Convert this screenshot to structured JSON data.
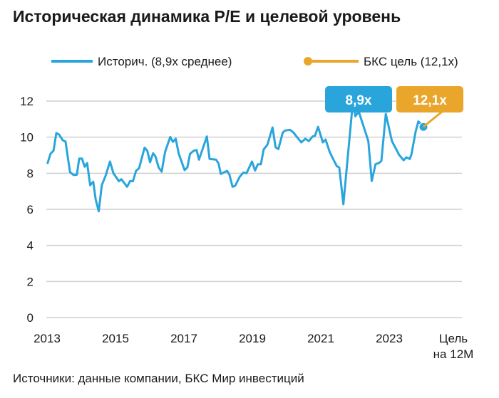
{
  "chart_data": {
    "type": "line",
    "title": "Историческая динамика P/E и целевой уровень",
    "source": "Источники: данные компании, БКС Мир инвестиций",
    "xlabel": "",
    "ylabel": "",
    "ylim": [
      0,
      12
    ],
    "yticks": [
      "0",
      "2",
      "4",
      "6",
      "8",
      "10",
      "12"
    ],
    "ytick_values": [
      0,
      2,
      4,
      6,
      8,
      10,
      12
    ],
    "xticks": [
      {
        "value": 2013,
        "label": "2013"
      },
      {
        "value": 2015,
        "label": "2015"
      },
      {
        "value": 2017,
        "label": "2017"
      },
      {
        "value": 2019,
        "label": "2019"
      },
      {
        "value": 2021,
        "label": "2021"
      },
      {
        "value": 2023,
        "label": "2023"
      }
    ],
    "target_tick": {
      "value": 2024.9,
      "label_line1": "Цель",
      "label_line2": "на 12М"
    },
    "grid": true,
    "legend_position": "top",
    "legend": [
      {
        "label": "Историч. (8,9x среднее)",
        "color": "#29a5dc"
      },
      {
        "label": "БКС цель (12,1x)",
        "color": "#e9a62b"
      }
    ],
    "annotations": [
      {
        "label": "8,9x",
        "color": "#29a5dc"
      },
      {
        "label": "12,1x",
        "color": "#e9a62b"
      }
    ],
    "series": [
      {
        "name": "Историч. (8,9x среднее)",
        "color": "#29a5dc",
        "x": [
          2013.01,
          2013.1,
          2013.19,
          2013.27,
          2013.35,
          2013.46,
          2013.54,
          2013.67,
          2013.78,
          2013.87,
          2013.94,
          2014.02,
          2014.1,
          2014.17,
          2014.26,
          2014.35,
          2014.42,
          2014.51,
          2014.6,
          2014.71,
          2014.84,
          2014.94,
          2015.1,
          2015.17,
          2015.34,
          2015.43,
          2015.51,
          2015.6,
          2015.69,
          2015.85,
          2015.93,
          2016.01,
          2016.1,
          2016.17,
          2016.26,
          2016.35,
          2016.45,
          2016.6,
          2016.68,
          2016.76,
          2016.85,
          2017.02,
          2017.1,
          2017.18,
          2017.29,
          2017.37,
          2017.44,
          2017.67,
          2017.75,
          2017.94,
          2018.01,
          2018.08,
          2018.26,
          2018.33,
          2018.42,
          2018.5,
          2018.63,
          2018.74,
          2018.83,
          2018.99,
          2019.08,
          2019.16,
          2019.25,
          2019.33,
          2019.44,
          2019.59,
          2019.68,
          2019.76,
          2019.89,
          2019.96,
          2020.1,
          2020.2,
          2020.43,
          2020.55,
          2020.65,
          2020.76,
          2020.83,
          2020.92,
          2021.06,
          2021.14,
          2021.26,
          2021.38,
          2021.47,
          2021.54,
          2021.66,
          2021.94,
          2022.01,
          2022.11,
          2022.39,
          2022.49,
          2022.6,
          2022.7,
          2022.77,
          2022.9,
          2023.08,
          2023.29,
          2023.42,
          2023.5,
          2023.6,
          2023.65,
          2023.77,
          2023.85,
          2023.92,
          2024.0
        ],
        "y": [
          8.52,
          9.08,
          9.25,
          10.23,
          10.15,
          9.83,
          9.76,
          8.06,
          7.9,
          7.92,
          8.81,
          8.81,
          8.36,
          8.57,
          7.34,
          7.53,
          6.55,
          5.89,
          7.34,
          7.86,
          8.65,
          8.0,
          7.56,
          7.67,
          7.25,
          7.57,
          7.56,
          8.13,
          8.28,
          9.42,
          9.25,
          8.61,
          9.11,
          8.92,
          8.32,
          8.09,
          9.18,
          10.01,
          9.74,
          9.91,
          9.08,
          8.17,
          8.32,
          9.08,
          9.25,
          9.29,
          8.75,
          10.04,
          8.79,
          8.75,
          8.55,
          7.96,
          8.13,
          7.93,
          7.25,
          7.31,
          7.8,
          8.04,
          8.0,
          8.65,
          8.15,
          8.5,
          8.5,
          9.31,
          9.58,
          10.54,
          9.44,
          9.34,
          10.26,
          10.37,
          10.41,
          10.26,
          9.71,
          9.91,
          9.78,
          10.04,
          10.08,
          10.57,
          9.71,
          9.87,
          9.18,
          8.72,
          8.39,
          8.32,
          6.28,
          12.0,
          11.16,
          11.42,
          9.78,
          7.57,
          8.5,
          8.57,
          8.68,
          11.29,
          9.78,
          9.02,
          8.72,
          8.88,
          8.79,
          9.05,
          10.3,
          10.87,
          10.74,
          10.57
        ]
      }
    ]
  }
}
